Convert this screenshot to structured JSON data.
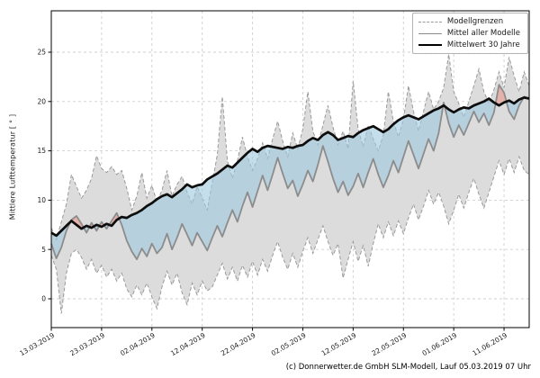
{
  "caption": "(c) Donnerwetter.de GmbH SLM-Modell, Lauf 05.03.2019 07 Uhr",
  "chart_data": {
    "type": "line",
    "title": "",
    "xlabel": "",
    "ylabel": "Mittlere Lufttemperatur [ ° ]",
    "ylim": [
      -3,
      29
    ],
    "yticks": [
      0,
      5,
      10,
      15,
      20,
      25
    ],
    "grid": "dashed",
    "legend_position": "upper-right",
    "legend": [
      {
        "label": "Modellgrenzen",
        "style": "dashed-gray"
      },
      {
        "label": "Mittel aller Modelle",
        "style": "solid-gray"
      },
      {
        "label": "Mittelwert 30 Jahre",
        "style": "solid-black-thick"
      }
    ],
    "x_tick_labels": [
      "13.03.2019",
      "23.03.2019",
      "02.04.2019",
      "12.04.2019",
      "22.04.2019",
      "02.05.2019",
      "12.05.2019",
      "22.05.2019",
      "01.06.2019",
      "11.06.2019"
    ],
    "x_tick_days": [
      0,
      10,
      20,
      30,
      40,
      50,
      60,
      70,
      80,
      90
    ],
    "days_total": 95,
    "series": {
      "upper": [
        7.2,
        6.0,
        7.8,
        9.6,
        12.6,
        11.4,
        10.2,
        11.0,
        12.2,
        14.5,
        13.2,
        12.8,
        13.4,
        12.6,
        13.0,
        11.2,
        9.0,
        10.4,
        12.8,
        10.2,
        11.5,
        9.8,
        11.0,
        13.0,
        10.4,
        11.6,
        12.4,
        10.8,
        9.6,
        11.4,
        10.2,
        9.0,
        11.8,
        14.6,
        20.5,
        14.0,
        12.2,
        14.0,
        16.4,
        14.4,
        13.0,
        14.2,
        15.8,
        14.2,
        16.2,
        18.0,
        16.0,
        14.4,
        16.8,
        15.2,
        17.2,
        21.0,
        17.0,
        15.6,
        17.6,
        19.6,
        17.4,
        15.6,
        17.0,
        15.2,
        22.1,
        17.2,
        15.4,
        17.6,
        16.2,
        15.0,
        16.6,
        21.0,
        18.0,
        16.4,
        18.2,
        21.6,
        19.0,
        17.0,
        19.0,
        21.0,
        19.2,
        20.0,
        21.4,
        24.8,
        21.0,
        19.8,
        18.4,
        20.0,
        21.6,
        23.3,
        21.0,
        19.8,
        21.2,
        23.0,
        21.4,
        24.5,
        22.6,
        21.0,
        23.0,
        21.6
      ],
      "lower": [
        4.4,
        3.0,
        -1.5,
        2.6,
        4.6,
        5.0,
        4.2,
        3.0,
        4.0,
        2.6,
        3.4,
        2.2,
        3.0,
        1.8,
        2.6,
        1.0,
        0.2,
        1.4,
        0.4,
        1.6,
        0.2,
        -1.0,
        1.2,
        2.8,
        1.4,
        2.6,
        0.6,
        -0.6,
        1.6,
        0.4,
        1.8,
        0.8,
        1.2,
        2.4,
        3.6,
        2.0,
        3.2,
        1.8,
        3.4,
        2.2,
        3.8,
        2.4,
        4.0,
        2.8,
        4.4,
        5.8,
        4.2,
        3.0,
        4.6,
        3.2,
        4.8,
        6.2,
        4.6,
        6.0,
        7.4,
        5.8,
        4.4,
        5.6,
        2.1,
        4.0,
        5.8,
        3.8,
        5.4,
        3.3,
        5.6,
        7.6,
        6.2,
        7.8,
        6.4,
        7.9,
        6.6,
        8.2,
        9.6,
        8.0,
        9.4,
        11.0,
        9.6,
        10.8,
        9.4,
        7.6,
        9.0,
        10.6,
        9.2,
        10.8,
        12.2,
        10.6,
        9.2,
        10.8,
        12.4,
        14.0,
        12.6,
        14.2,
        12.8,
        14.4,
        13.0,
        12.6
      ],
      "model_mean": [
        5.6,
        4.1,
        5.2,
        6.9,
        8.0,
        8.4,
        7.6,
        6.7,
        7.7,
        6.9,
        7.8,
        7.1,
        7.9,
        8.7,
        7.5,
        5.9,
        4.8,
        4.0,
        5.1,
        4.3,
        5.6,
        4.6,
        5.2,
        6.6,
        5.0,
        6.2,
        7.6,
        6.5,
        5.4,
        6.7,
        5.8,
        4.9,
        6.2,
        7.4,
        6.3,
        7.7,
        9.0,
        7.8,
        9.4,
        10.8,
        9.3,
        10.9,
        12.5,
        11.0,
        12.6,
        14.3,
        12.7,
        11.2,
        12.0,
        10.4,
        11.6,
        13.0,
        11.9,
        13.6,
        15.5,
        13.9,
        12.2,
        10.8,
        11.9,
        10.5,
        11.4,
        12.7,
        11.3,
        12.8,
        14.2,
        12.6,
        11.3,
        12.5,
        14.0,
        12.8,
        14.4,
        16.0,
        14.6,
        13.2,
        14.7,
        16.2,
        15.0,
        16.8,
        19.9,
        17.8,
        16.4,
        17.6,
        16.6,
        17.8,
        19.0,
        17.9,
        18.8,
        17.6,
        18.9,
        21.7,
        20.9,
        19.0,
        18.2,
        19.6,
        20.5,
        20.3
      ],
      "climate_mean_30y": [
        6.7,
        6.4,
        6.9,
        7.4,
        7.9,
        7.5,
        7.1,
        7.4,
        7.2,
        7.5,
        7.3,
        7.6,
        7.4,
        8.0,
        8.3,
        8.2,
        8.5,
        8.7,
        9.0,
        9.4,
        9.7,
        10.1,
        10.4,
        10.6,
        10.3,
        10.7,
        11.1,
        11.6,
        11.3,
        11.5,
        11.6,
        12.1,
        12.4,
        12.7,
        13.1,
        13.5,
        13.3,
        13.8,
        14.3,
        14.8,
        15.2,
        14.9,
        15.3,
        15.5,
        15.4,
        15.3,
        15.2,
        15.4,
        15.3,
        15.5,
        15.6,
        16.0,
        16.3,
        16.1,
        16.6,
        16.9,
        16.6,
        16.1,
        16.3,
        16.5,
        16.4,
        16.8,
        17.1,
        17.3,
        17.5,
        17.2,
        16.9,
        17.2,
        17.7,
        18.1,
        18.4,
        18.6,
        18.4,
        18.2,
        18.5,
        18.8,
        19.1,
        19.3,
        19.6,
        19.2,
        18.9,
        19.2,
        19.4,
        19.3,
        19.6,
        19.8,
        20.0,
        20.3,
        19.9,
        19.6,
        19.9,
        20.1,
        19.8,
        20.2,
        20.4,
        20.3
      ]
    },
    "colors": {
      "band_fill": "#dcdcdc",
      "bound_line": "#9a9a9a",
      "cool_fill": "#9ec8e0",
      "warm_fill": "#e8968c",
      "model_line": "#8c8c8c",
      "climate_line": "#0d0d0d",
      "grid_line": "#cfcfcf",
      "axis_color": "#000000",
      "tick_text": "#1a1a1a"
    }
  }
}
